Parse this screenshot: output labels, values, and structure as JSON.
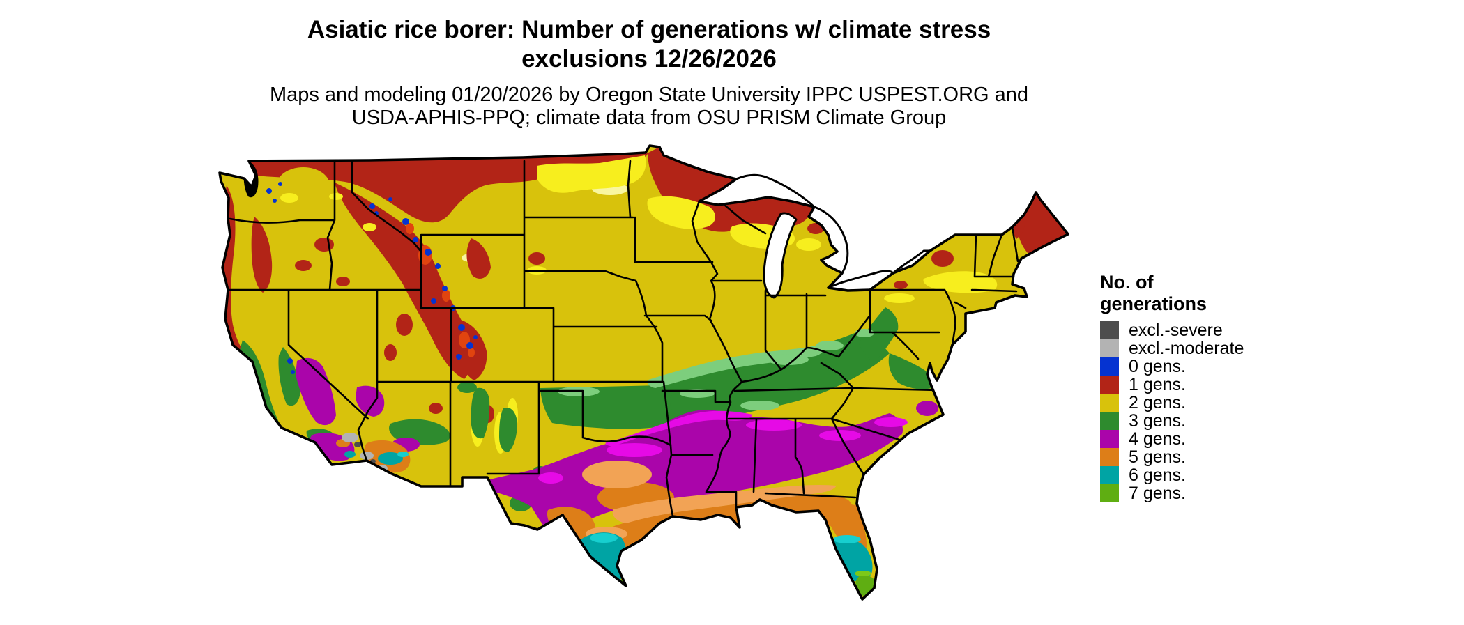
{
  "title": {
    "line1": "Asiatic rice borer: Number of generations w/ climate stress",
    "line2": "exclusions 12/26/2026"
  },
  "subtitle": {
    "line1": "Maps and modeling 01/20/2026 by Oregon State University IPPC USPEST.ORG and",
    "line2": "USDA-APHIS-PPQ; climate data from OSU PRISM Climate Group"
  },
  "legend": {
    "title_line1": "No. of",
    "title_line2": "generations",
    "items": [
      {
        "key": "excl_severe",
        "label": "excl.-severe",
        "color": "#4d4d4d"
      },
      {
        "key": "excl_moderate",
        "label": "excl.-moderate",
        "color": "#b3b3b3"
      },
      {
        "key": "gens0",
        "label": "0 gens.",
        "color": "#0533d1"
      },
      {
        "key": "gens1",
        "label": "1 gens.",
        "color": "#b22417"
      },
      {
        "key": "gens2",
        "label": "2 gens.",
        "color": "#d8c20c"
      },
      {
        "key": "gens3",
        "label": "3 gens.",
        "color": "#2e8b2e"
      },
      {
        "key": "gens4",
        "label": "4 gens.",
        "color": "#aa05aa"
      },
      {
        "key": "gens5",
        "label": "5 gens.",
        "color": "#dd7e18"
      },
      {
        "key": "gens6",
        "label": "6 gens.",
        "color": "#00a4a4"
      },
      {
        "key": "gens7",
        "label": "7 gens.",
        "color": "#5fae12"
      }
    ]
  },
  "map": {
    "type": "choropleth-raster",
    "region": "Contiguous United States",
    "transition_colors": {
      "bright_yellow": "#f7ee1e",
      "pale_yellow": "#f9f6a0",
      "light_green": "#7dce7d",
      "bright_magenta": "#e60ae6",
      "light_orange": "#f2a355",
      "bright_cyan": "#17cfcf",
      "bright_green": "#7cc818",
      "orange_red": "#e1440f",
      "water": "#ffffff",
      "boundary": "#000000"
    }
  }
}
